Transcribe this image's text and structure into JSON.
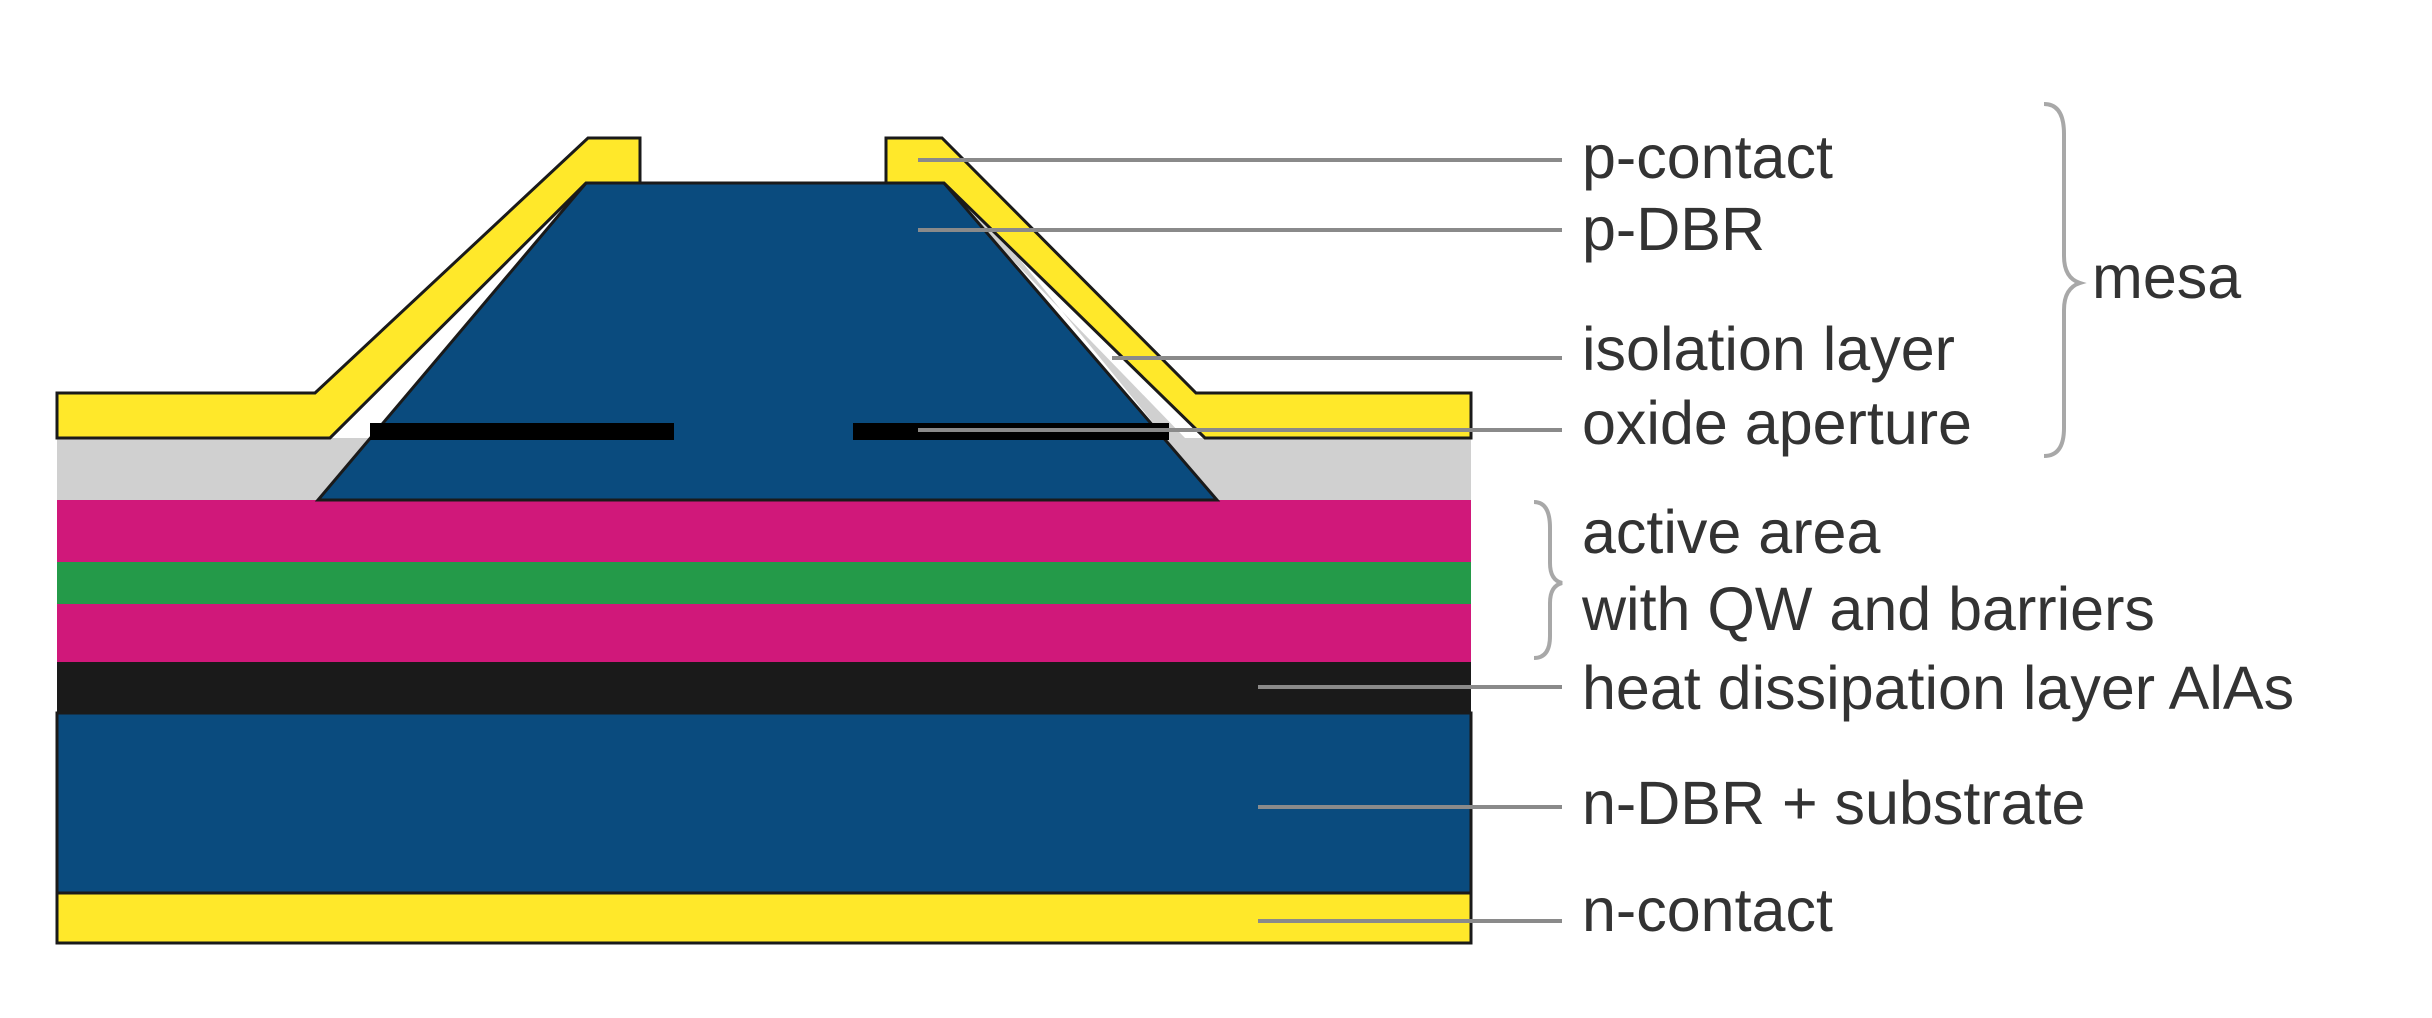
{
  "labels": {
    "p_contact": "p-contact",
    "p_dbr": "p-DBR",
    "isolation_layer": "isolation layer",
    "oxide_aperture": "oxide aperture",
    "active_area_line1": "active area",
    "active_area_line2": "with QW and barriers",
    "heat_dissipation": "heat dissipation layer AlAs",
    "n_dbr_substrate": "n-DBR + substrate",
    "n_contact": "n-contact",
    "mesa": "mesa"
  },
  "colors": {
    "contact_gold": "#ffe82a",
    "dbr_blue": "#0a4b7e",
    "isolation_gray": "#d0d0d0",
    "active_magenta": "#d0187a",
    "qw_green": "#249a49",
    "heat_black": "#1a1a1a",
    "oxide_black": "#000000"
  }
}
